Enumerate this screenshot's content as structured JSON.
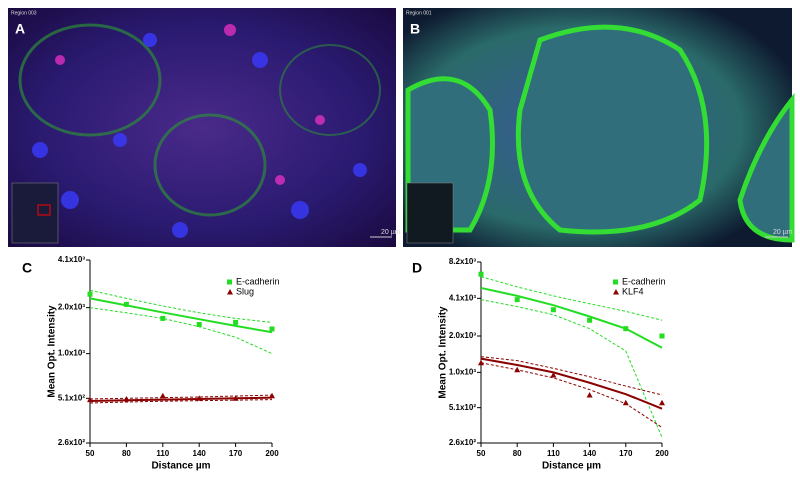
{
  "panels": [
    {
      "label": "A",
      "region": "Region 003",
      "scale": "20 µm"
    },
    {
      "label": "B",
      "region": "Region 001",
      "scale": "20 µm"
    }
  ],
  "chart_data": [
    {
      "type": "scatter",
      "panel_label": "C",
      "xlabel": "Distance µm",
      "ylabel": "Mean Opt. Intensity",
      "log_y": true,
      "x": [
        50,
        80,
        110,
        140,
        170,
        200
      ],
      "xlim": [
        50,
        200
      ],
      "xticks": [
        50,
        80,
        110,
        140,
        170,
        200
      ],
      "ylim": [
        260,
        4100
      ],
      "yticks": [
        {
          "value": 260,
          "label": "2.6x10²"
        },
        {
          "value": 510,
          "label": "5.1x10²"
        },
        {
          "value": 1000,
          "label": "1.0x10³"
        },
        {
          "value": 2000,
          "label": "2.0x10³"
        },
        {
          "value": 4100,
          "label": "4.1x10³"
        }
      ],
      "series": [
        {
          "name": "E-cadherin",
          "color": "#22dd22",
          "marker": "square",
          "values": [
            2450,
            2100,
            1700,
            1550,
            1600,
            1450
          ],
          "fit": [
            2300,
            2070,
            1860,
            1680,
            1520,
            1380
          ],
          "ci_upper": [
            2600,
            2300,
            2050,
            1850,
            1700,
            1600
          ],
          "ci_lower": [
            2000,
            1850,
            1700,
            1500,
            1280,
            1000
          ]
        },
        {
          "name": "Slug",
          "color": "#8b0000",
          "marker": "triangle",
          "values": [
            500,
            505,
            530,
            510,
            510,
            530
          ],
          "fit": [
            490,
            495,
            500,
            505,
            510,
            515
          ],
          "ci_upper": [
            505,
            510,
            515,
            520,
            528,
            535
          ],
          "ci_lower": [
            475,
            482,
            488,
            492,
            496,
            500
          ]
        }
      ]
    },
    {
      "type": "scatter",
      "panel_label": "D",
      "xlabel": "Distance µm",
      "ylabel": "Mean Opt. Intensity",
      "log_y": true,
      "x": [
        50,
        80,
        110,
        140,
        170,
        200
      ],
      "xlim": [
        50,
        200
      ],
      "xticks": [
        50,
        80,
        110,
        140,
        170,
        200
      ],
      "ylim": [
        260,
        8200
      ],
      "yticks": [
        {
          "value": 260,
          "label": "2.6x10²"
        },
        {
          "value": 510,
          "label": "5.1x10²"
        },
        {
          "value": 1000,
          "label": "1.0x10³"
        },
        {
          "value": 2000,
          "label": "2.0x10³"
        },
        {
          "value": 4100,
          "label": "4.1x10³"
        },
        {
          "value": 8200,
          "label": "8.2x10³"
        }
      ],
      "series": [
        {
          "name": "E-cadherin",
          "color": "#22dd22",
          "marker": "square",
          "values": [
            6500,
            4000,
            3300,
            2700,
            2300,
            2000
          ],
          "fit": [
            5000,
            4300,
            3600,
            2900,
            2300,
            1600
          ],
          "ci_upper": [
            6200,
            5100,
            4300,
            3700,
            3200,
            2700
          ],
          "ci_lower": [
            4000,
            3500,
            3000,
            2300,
            1500,
            290
          ]
        },
        {
          "name": "KLF4",
          "color": "#8b0000",
          "marker": "triangle",
          "values": [
            1200,
            1050,
            950,
            650,
            560,
            560
          ],
          "fit": [
            1300,
            1150,
            1000,
            820,
            660,
            500
          ],
          "ci_upper": [
            1350,
            1250,
            1080,
            920,
            770,
            650
          ],
          "ci_lower": [
            1200,
            1050,
            900,
            720,
            550,
            350
          ]
        }
      ]
    }
  ]
}
